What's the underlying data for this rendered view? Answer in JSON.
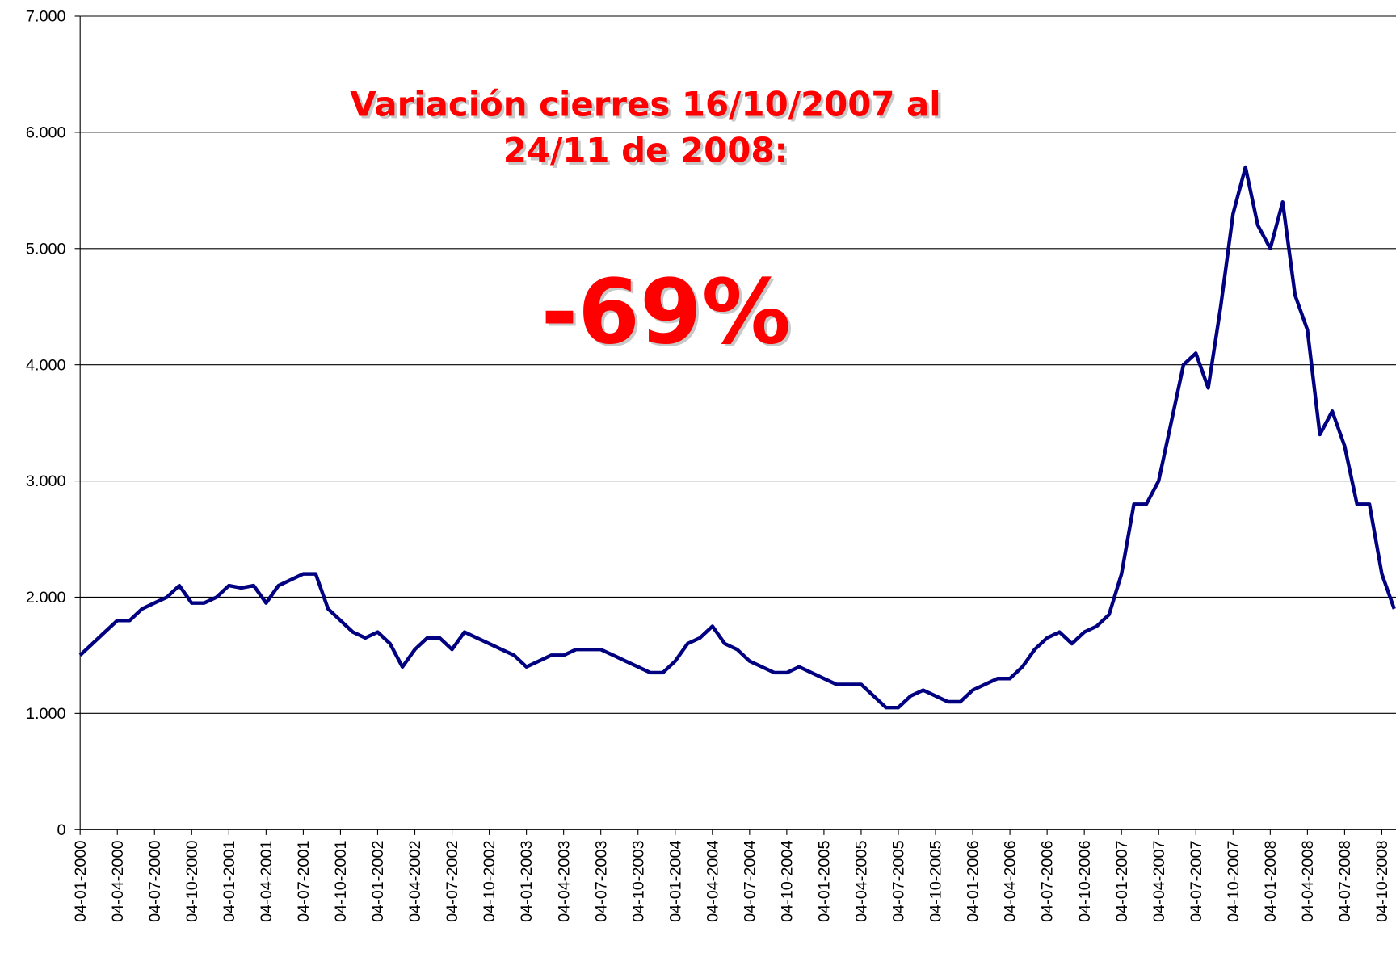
{
  "chart_data": {
    "type": "line",
    "annotations": [
      "Variación cierres 16/10/2007 al",
      "24/11 de 2008:",
      "-69%"
    ],
    "categories": [
      "04-01-2000",
      null,
      null,
      "04-04-2000",
      null,
      null,
      "04-07-2000",
      null,
      null,
      "04-10-2000",
      null,
      null,
      "04-01-2001",
      null,
      null,
      "04-04-2001",
      null,
      null,
      "04-07-2001",
      null,
      null,
      "04-10-2001",
      null,
      null,
      "04-01-2002",
      null,
      null,
      "04-04-2002",
      null,
      null,
      "04-07-2002",
      null,
      null,
      "04-10-2002",
      null,
      null,
      "04-01-2003",
      null,
      null,
      "04-04-2003",
      null,
      null,
      "04-07-2003",
      null,
      null,
      "04-10-2003",
      null,
      null,
      "04-01-2004",
      null,
      null,
      "04-04-2004",
      null,
      null,
      "04-07-2004",
      null,
      null,
      "04-10-2004",
      null,
      null,
      "04-01-2005",
      null,
      null,
      "04-04-2005",
      null,
      null,
      "04-07-2005",
      null,
      null,
      "04-10-2005",
      null,
      null,
      "04-01-2006",
      null,
      null,
      "04-04-2006",
      null,
      null,
      "04-07-2006",
      null,
      null,
      "04-10-2006",
      null,
      null,
      "04-01-2007",
      null,
      null,
      "04-04-2007",
      null,
      null,
      "04-07-2007",
      null,
      null,
      "04-10-2007",
      null,
      null,
      "04-01-2008",
      null,
      null,
      "04-04-2008",
      null,
      null,
      "04-07-2008",
      null,
      null,
      "04-10-2008",
      null
    ],
    "values": [
      1500,
      1600,
      1700,
      1800,
      1800,
      1900,
      1950,
      2000,
      2100,
      1950,
      1950,
      2000,
      2100,
      2080,
      2100,
      1950,
      2100,
      2150,
      2200,
      2200,
      1900,
      1800,
      1700,
      1650,
      1700,
      1600,
      1400,
      1550,
      1650,
      1650,
      1550,
      1700,
      1650,
      1600,
      1550,
      1500,
      1400,
      1450,
      1500,
      1500,
      1550,
      1550,
      1550,
      1500,
      1450,
      1400,
      1350,
      1350,
      1450,
      1600,
      1650,
      1750,
      1600,
      1550,
      1450,
      1400,
      1350,
      1350,
      1400,
      1350,
      1300,
      1250,
      1250,
      1250,
      1150,
      1050,
      1050,
      1150,
      1200,
      1150,
      1100,
      1100,
      1200,
      1250,
      1300,
      1300,
      1400,
      1550,
      1650,
      1700,
      1600,
      1700,
      1750,
      1850,
      2200,
      2800,
      2800,
      3000,
      3500,
      4000,
      4100,
      3800,
      4500,
      5300,
      5700,
      5200,
      5000,
      5400,
      4600,
      4300,
      3400,
      3600,
      3300,
      2800,
      2800,
      2200,
      1900
    ],
    "color": "#000080",
    "ylim": [
      0,
      7000
    ],
    "yticks": [
      0,
      {
        "value": 1000,
        "label": "1.000"
      },
      {
        "value": 2000,
        "label": "2.000"
      },
      {
        "value": 3000,
        "label": "3.000"
      },
      {
        "value": 4000,
        "label": "4.000"
      },
      {
        "value": 5000,
        "label": "5.000"
      },
      {
        "value": 6000,
        "label": "6.000"
      },
      {
        "value": 7000,
        "label": "7.000"
      }
    ],
    "grid": true
  }
}
